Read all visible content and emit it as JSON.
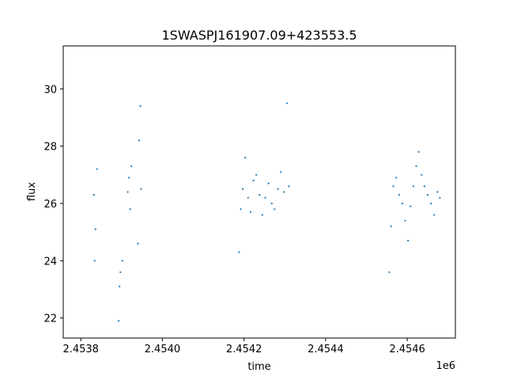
{
  "chart_data": {
    "type": "scatter",
    "title": "1SWASPJ161907.09+423553.5",
    "xlabel": "time",
    "ylabel": "flux",
    "x_offset_label": "1e6",
    "x_tick_labels": [
      "2.4538",
      "2.4540",
      "2.4542",
      "2.4544",
      "2.4546"
    ],
    "y_tick_labels": [
      "22",
      "24",
      "26",
      "28",
      "30"
    ],
    "xlim": [
      2453757,
      2454718
    ],
    "ylim": [
      21.3,
      31.5
    ],
    "grid": false,
    "legend": "none",
    "marker_color": "#1f77b4",
    "series": [
      {
        "values": [
          [
            2453832,
            26.3
          ],
          [
            2453834,
            24.0
          ],
          [
            2453836,
            25.1
          ],
          [
            2453840,
            27.2
          ],
          [
            2453893,
            21.9
          ],
          [
            2453895,
            23.1
          ],
          [
            2453897,
            23.6
          ],
          [
            2453902,
            24.0
          ],
          [
            2453915,
            26.4
          ],
          [
            2453918,
            26.9
          ],
          [
            2453921,
            25.8
          ],
          [
            2453924,
            27.3
          ],
          [
            2453940,
            24.6
          ],
          [
            2453943,
            28.2
          ],
          [
            2453946,
            29.4
          ],
          [
            2453948,
            26.5
          ],
          [
            2454188,
            24.3
          ],
          [
            2454192,
            25.8
          ],
          [
            2454197,
            26.5
          ],
          [
            2454203,
            27.6
          ],
          [
            2454210,
            26.2
          ],
          [
            2454216,
            25.7
          ],
          [
            2454223,
            26.8
          ],
          [
            2454230,
            27.0
          ],
          [
            2454238,
            26.3
          ],
          [
            2454245,
            25.6
          ],
          [
            2454252,
            26.2
          ],
          [
            2454260,
            26.7
          ],
          [
            2454268,
            26.0
          ],
          [
            2454275,
            25.8
          ],
          [
            2454283,
            26.5
          ],
          [
            2454290,
            27.1
          ],
          [
            2454298,
            26.4
          ],
          [
            2454305,
            29.5
          ],
          [
            2454310,
            26.6
          ],
          [
            2454556,
            23.6
          ],
          [
            2454560,
            25.2
          ],
          [
            2454566,
            26.6
          ],
          [
            2454573,
            26.9
          ],
          [
            2454580,
            26.3
          ],
          [
            2454588,
            26.0
          ],
          [
            2454595,
            25.4
          ],
          [
            2454602,
            24.7
          ],
          [
            2454608,
            25.9
          ],
          [
            2454615,
            26.6
          ],
          [
            2454622,
            27.3
          ],
          [
            2454628,
            27.8
          ],
          [
            2454635,
            27.0
          ],
          [
            2454642,
            26.6
          ],
          [
            2454650,
            26.3
          ],
          [
            2454658,
            26.0
          ],
          [
            2454666,
            25.6
          ],
          [
            2454674,
            26.4
          ],
          [
            2454680,
            26.2
          ]
        ]
      }
    ]
  }
}
